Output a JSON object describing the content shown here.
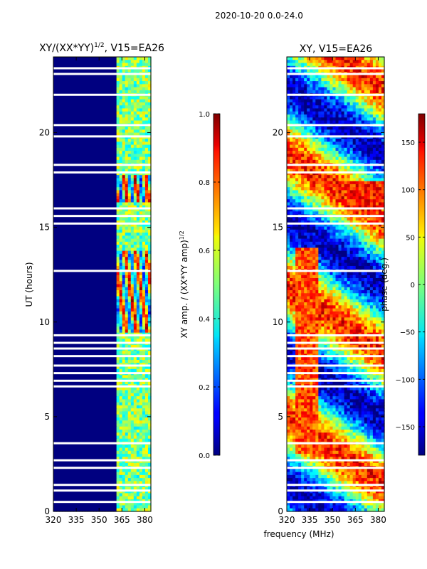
{
  "suptitle": "2020-10-20 0.0-24.0",
  "xlabel_shared": "frequency (MHz)",
  "chart_data": [
    {
      "type": "heatmap",
      "title": "XY/(XX*YY)",
      "title_sup": "1/2",
      "title_tail": ", V15=EA26",
      "ylabel": "UT (hours)",
      "x_range": [
        320,
        384
      ],
      "y_range": [
        0,
        24
      ],
      "x_ticks": [
        320,
        335,
        350,
        365,
        380
      ],
      "y_ticks": [
        0,
        5,
        10,
        15,
        20
      ],
      "colorbar": {
        "label": "XY amp. / (XX*YY amp)",
        "label_sup": "1/2",
        "range": [
          0.0,
          1.0
        ],
        "ticks": [
          "0.0",
          "0.2",
          "0.4",
          "0.6",
          "0.8",
          "1.0"
        ],
        "tick_values": [
          0.0,
          0.2,
          0.4,
          0.6,
          0.8,
          1.0
        ]
      },
      "description_bands_mhz": [
        [
          361,
          384
        ]
      ],
      "flagged_hours": [
        0.5,
        1.1,
        1.4,
        2.3,
        2.7,
        3.6,
        6.6,
        6.9,
        7.3,
        7.7,
        8.2,
        8.6,
        8.9,
        9.3,
        12.7,
        15.2,
        15.6,
        16.0,
        17.9,
        18.3,
        19.8,
        20.4,
        22.0,
        23.1,
        23.4
      ]
    },
    {
      "type": "heatmap",
      "title": "XY, V15=EA26",
      "ylabel": "",
      "x_range": [
        320,
        384
      ],
      "y_range": [
        0,
        24
      ],
      "x_ticks": [
        320,
        335,
        350,
        365,
        380
      ],
      "y_ticks": [
        0,
        5,
        10,
        15,
        20
      ],
      "colorbar": {
        "label": "phase (deg.)",
        "range": [
          -180,
          180
        ],
        "ticks": [
          "−150",
          "−100",
          "−50",
          "0",
          "50",
          "100",
          "150"
        ],
        "tick_values": [
          -150,
          -100,
          -50,
          0,
          50,
          100,
          150
        ]
      },
      "flagged_hours": [
        0.5,
        1.1,
        1.4,
        2.3,
        2.7,
        3.6,
        6.6,
        6.9,
        7.3,
        7.7,
        8.2,
        8.6,
        8.9,
        9.3,
        12.7,
        15.2,
        15.6,
        16.0,
        17.9,
        18.3,
        19.8,
        20.4,
        22.0,
        23.1,
        23.4
      ]
    }
  ]
}
